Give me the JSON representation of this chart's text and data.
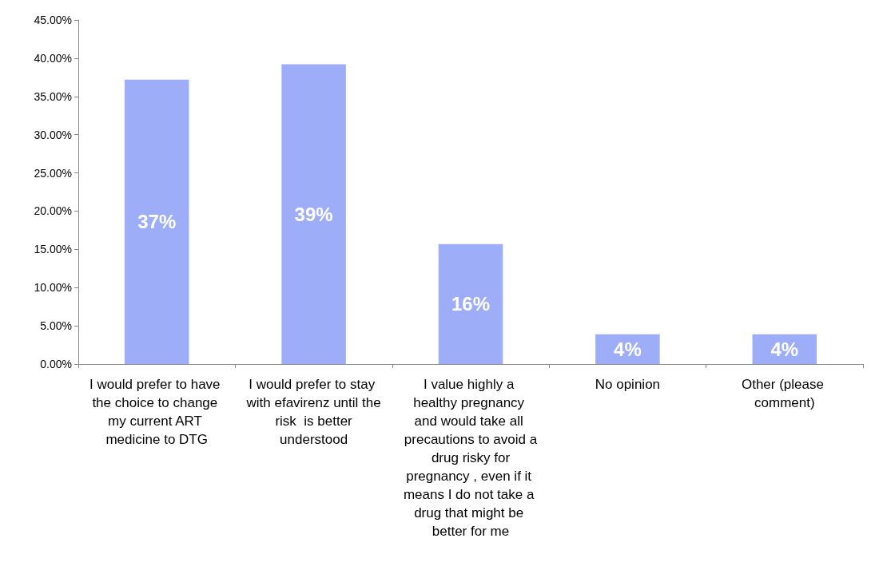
{
  "chart_data": {
    "type": "bar",
    "categories": [
      "I would prefer to have the choice to change my current ART medicine to DTG",
      "I would prefer to stay with efavirenz until the risk  is better understood",
      "I value highly a healthy pregnancy and would take all precautions to avoid a drug risky for pregnancy , even if it means I do not take a drug that might be better for me",
      "No opinion",
      "Other (please comment)"
    ],
    "values": [
      37.2,
      39.2,
      15.7,
      3.9,
      3.9
    ],
    "value_labels": [
      "37%",
      "39%",
      "16%",
      "4%",
      "4%"
    ],
    "color": "#9dadf7",
    "ylim": [
      0,
      45
    ],
    "yticks": [
      {
        "value": 0,
        "label": "0.00%"
      },
      {
        "value": 5,
        "label": "5.00%"
      },
      {
        "value": 10,
        "label": "10.00%"
      },
      {
        "value": 15,
        "label": "15.00%"
      },
      {
        "value": 20,
        "label": "20.00%"
      },
      {
        "value": 25,
        "label": "25.00%"
      },
      {
        "value": 30,
        "label": "30.00%"
      },
      {
        "value": 35,
        "label": "35.00%"
      },
      {
        "value": 40,
        "label": "40.00%"
      },
      {
        "value": 45,
        "label": "45.00%"
      }
    ],
    "grid": false
  }
}
